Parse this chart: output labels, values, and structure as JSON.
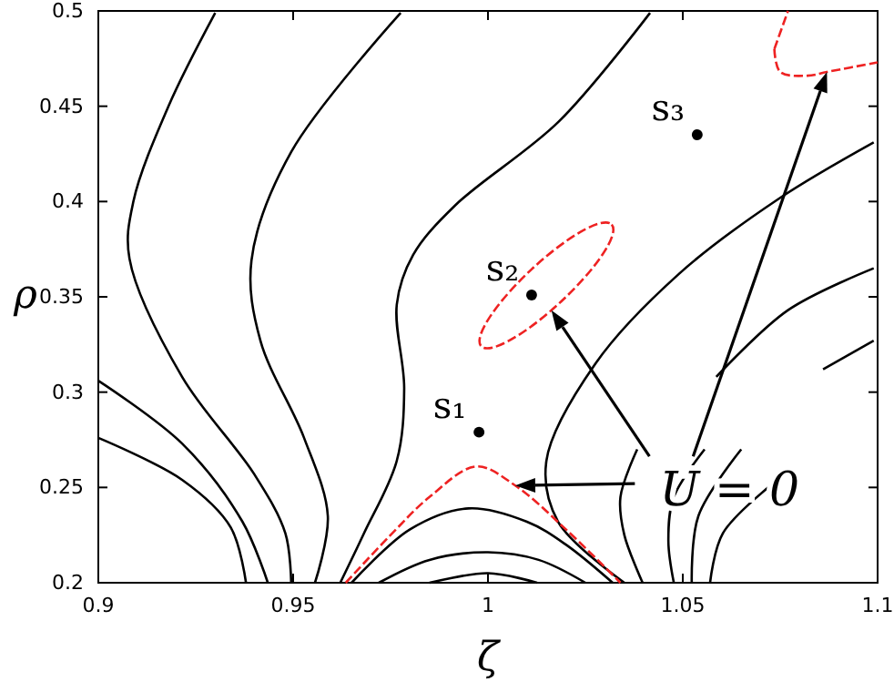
{
  "chart_data": {
    "type": "line",
    "xlabel": "ζ",
    "ylabel": "ρ",
    "xlim": [
      0.9,
      1.1
    ],
    "ylim": [
      0.2,
      0.5
    ],
    "xticks": [
      0.9,
      0.95,
      1,
      1.05,
      1.1
    ],
    "yticks": [
      0.2,
      0.25,
      0.3,
      0.35,
      0.4,
      0.45,
      0.5
    ],
    "grid": false,
    "series": [
      {
        "color": "#000000",
        "line_style": "solid",
        "x": [
          0.93,
          0.918,
          0.909,
          0.908,
          0.9215,
          0.94,
          0.948,
          0.9495
        ],
        "values": [
          0.499,
          0.45,
          0.4,
          0.37,
          0.308,
          0.257,
          0.226,
          0.2
        ]
      },
      {
        "color": "#000000",
        "line_style": "solid",
        "x": [
          0.9776,
          0.9495,
          0.9393,
          0.9416,
          0.9528,
          0.9589,
          0.9556
        ],
        "values": [
          0.499,
          0.426,
          0.369,
          0.327,
          0.276,
          0.235,
          0.2
        ]
      },
      {
        "color": "#000000",
        "line_style": "solid",
        "x": [
          1.0416,
          1.0182,
          0.9916,
          0.9808,
          0.9766,
          0.9785,
          0.9766,
          0.9682,
          0.9621
        ],
        "values": [
          0.499,
          0.442,
          0.398,
          0.372,
          0.346,
          0.302,
          0.264,
          0.226,
          0.2
        ]
      },
      {
        "color": "#000000",
        "line_style": "solid",
        "x": [
          0.9,
          0.9215,
          0.937,
          0.9435
        ],
        "values": [
          0.306,
          0.273,
          0.232,
          0.2
        ]
      },
      {
        "color": "#000000",
        "line_style": "solid",
        "x": [
          0.9,
          0.9215,
          0.934,
          0.9379
        ],
        "values": [
          0.276,
          0.254,
          0.229,
          0.2
        ]
      },
      {
        "color": "#000000",
        "line_style": "solid",
        "x": [
          0.965,
          0.98,
          0.995,
          1.01,
          1.02,
          1.032
        ],
        "values": [
          0.2,
          0.228,
          0.239,
          0.232,
          0.22,
          0.2
        ]
      },
      {
        "color": "#000000",
        "line_style": "solid",
        "x": [
          0.972,
          0.985,
          1.0,
          1.013,
          1.025
        ],
        "values": [
          0.2,
          0.212,
          0.216,
          0.212,
          0.2
        ]
      },
      {
        "color": "#000000",
        "line_style": "solid",
        "x": [
          0.985,
          1.0,
          1.0126
        ],
        "values": [
          0.2,
          0.205,
          0.2
        ]
      },
      {
        "color": "#000000",
        "line_style": "solid",
        "x": [
          1.099,
          1.0743,
          1.049,
          1.0276,
          1.015,
          1.018,
          1.035
        ],
        "values": [
          0.431,
          0.401,
          0.362,
          0.315,
          0.264,
          0.232,
          0.2
        ]
      },
      {
        "color": "#000000",
        "line_style": "solid",
        "x": [
          1.099,
          1.077,
          1.0586
        ],
        "values": [
          0.365,
          0.343,
          0.308
        ]
      },
      {
        "color": "#000000",
        "line_style": "solid",
        "x": [
          1.099,
          1.086
        ],
        "values": [
          0.327,
          0.312
        ]
      },
      {
        "color": "#000000",
        "line_style": "solid",
        "x": [
          1.0383,
          1.034,
          1.035,
          1.0397
        ],
        "values": [
          0.27,
          0.245,
          0.225,
          0.2
        ]
      },
      {
        "color": "#000000",
        "line_style": "solid",
        "x": [
          1.0556,
          1.0477,
          1.0463,
          1.0477
        ],
        "values": [
          0.27,
          0.245,
          0.222,
          0.2
        ]
      },
      {
        "color": "#000000",
        "line_style": "solid",
        "x": [
          1.065,
          1.054,
          1.0523
        ],
        "values": [
          0.27,
          0.235,
          0.2
        ]
      },
      {
        "color": "#000000",
        "line_style": "solid",
        "x": [
          1.0743,
          1.0603,
          1.057
        ],
        "values": [
          0.254,
          0.226,
          0.2
        ]
      },
      {
        "color": "#ee2222",
        "line_style": "dashed",
        "x": [
          0.9635,
          0.975,
          0.985,
          0.997,
          1.007,
          1.02,
          1.034
        ],
        "values": [
          0.2,
          0.225,
          0.245,
          0.261,
          0.251,
          0.228,
          0.2
        ]
      },
      {
        "color": "#ee2222",
        "line_style": "dashed",
        "x": [
          1.0735,
          1.077
        ],
        "values": [
          0.48,
          0.5
        ]
      },
      {
        "color": "#ee2222",
        "line_style": "dashed",
        "x": [
          1.0735,
          1.075,
          1.082,
          1.087,
          1.1
        ],
        "values": [
          0.48,
          0.468,
          0.466,
          0.468,
          0.473
        ]
      },
      {
        "type": "scatter",
        "marker": "circle",
        "color": "#000000",
        "x": [
          0.9977,
          1.0112,
          1.0537
        ],
        "values": [
          0.279,
          0.351,
          0.435
        ]
      }
    ],
    "annotations": [
      {
        "text": "s₁",
        "x": 0.9977,
        "y": 0.279
      },
      {
        "text": "s₂",
        "x": 1.0112,
        "y": 0.351
      },
      {
        "text": "s₃",
        "x": 1.0537,
        "y": 0.435
      },
      "U = 0"
    ]
  }
}
